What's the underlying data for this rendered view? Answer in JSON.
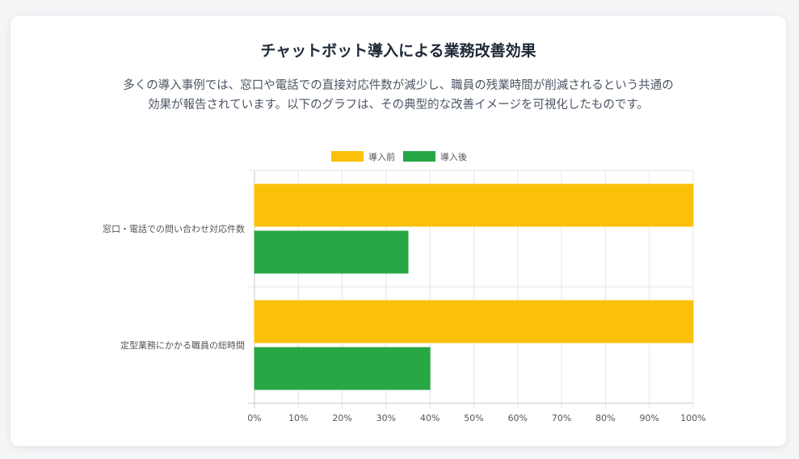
{
  "card": {
    "title": "チャットボット導入による業務改善効果",
    "description": "多くの導入事例では、窓口や電話での直接対応件数が減少し、職員の残業時間が削減されるという共通の効果が報告されています。以下のグラフは、その典型的な改善イメージを可視化したものです。"
  },
  "chart_data": {
    "type": "bar",
    "orientation": "horizontal",
    "categories": [
      "窓口・電話での問い合わせ対応件数",
      "定型業務にかかる職員の総時間"
    ],
    "series": [
      {
        "name": "導入前",
        "values": [
          100,
          100
        ],
        "color": "#FBC00A"
      },
      {
        "name": "導入後",
        "values": [
          35,
          40
        ],
        "color": "#28A745"
      }
    ],
    "xlim": [
      0,
      100
    ],
    "xticks": [
      "0%",
      "10%",
      "20%",
      "30%",
      "40%",
      "50%",
      "60%",
      "70%",
      "80%",
      "90%",
      "100%"
    ],
    "grid": true,
    "legend_position": "top"
  }
}
